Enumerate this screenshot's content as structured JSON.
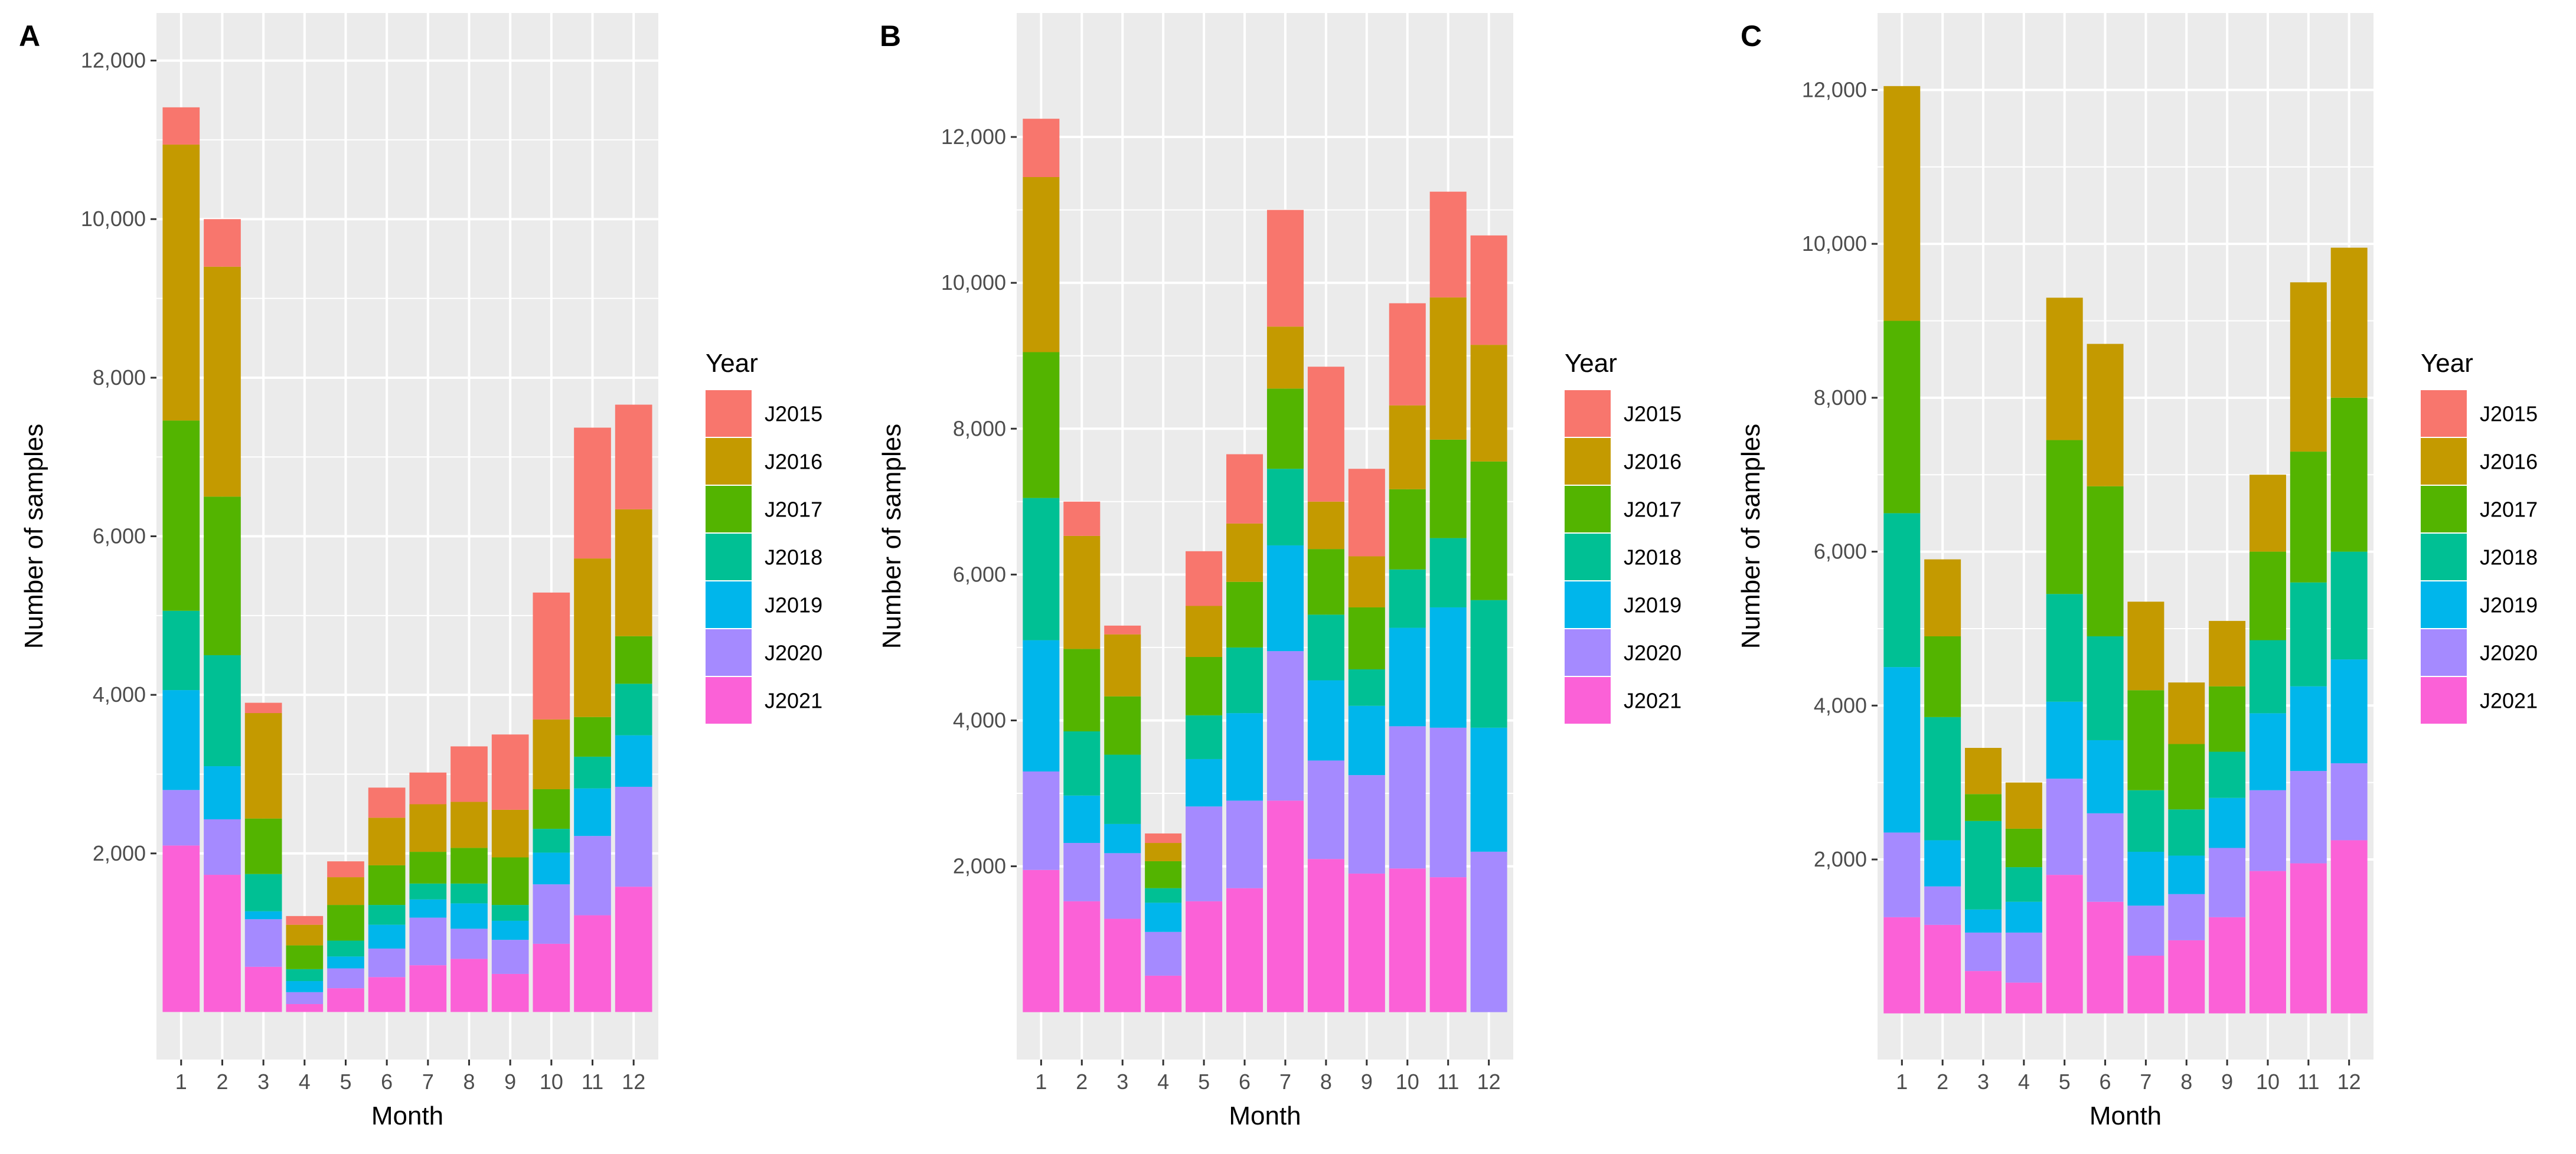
{
  "colors": {
    "J2015": "#F8766D",
    "J2016": "#C49A00",
    "J2017": "#53B400",
    "J2018": "#00C094",
    "J2019": "#00B6EB",
    "J2020": "#A58AFF",
    "J2021": "#FB61D7",
    "panel_bg": "#EBEBEB",
    "grid": "#FFFFFF"
  },
  "chart_data": [
    {
      "type": "bar",
      "stacked": true,
      "panel_label": "A",
      "xlabel": "Month",
      "ylabel": "Number of samples",
      "legend_title": "Year",
      "legend_position": "right",
      "grid": true,
      "ylim": [
        -600,
        12600
      ],
      "yticks": [
        2000,
        4000,
        6000,
        8000,
        10000,
        12000
      ],
      "ytick_labels": [
        "2,000",
        "4,000",
        "6,000",
        "8,000",
        "10,000",
        "12,000"
      ],
      "categories": [
        "1",
        "2",
        "3",
        "4",
        "5",
        "6",
        "7",
        "8",
        "9",
        "10",
        "11",
        "12"
      ],
      "series": [
        {
          "name": "J2015",
          "values": [
            470,
            600,
            130,
            110,
            200,
            380,
            400,
            700,
            950,
            1600,
            1650,
            1320
          ]
        },
        {
          "name": "J2016",
          "values": [
            3480,
            2900,
            1330,
            260,
            350,
            600,
            600,
            580,
            600,
            880,
            2000,
            1600
          ]
        },
        {
          "name": "J2017",
          "values": [
            2400,
            2000,
            700,
            300,
            450,
            500,
            400,
            450,
            600,
            500,
            500,
            600
          ]
        },
        {
          "name": "J2018",
          "values": [
            1000,
            1400,
            470,
            150,
            200,
            250,
            200,
            250,
            200,
            300,
            400,
            650
          ]
        },
        {
          "name": "J2019",
          "values": [
            1260,
            670,
            100,
            140,
            150,
            300,
            230,
            320,
            240,
            400,
            600,
            650
          ]
        },
        {
          "name": "J2020",
          "values": [
            700,
            700,
            600,
            150,
            250,
            360,
            600,
            380,
            430,
            750,
            1000,
            1260
          ]
        },
        {
          "name": "J2021",
          "values": [
            2100,
            1730,
            570,
            100,
            300,
            440,
            590,
            670,
            480,
            860,
            1220,
            1580
          ]
        }
      ]
    },
    {
      "type": "bar",
      "stacked": true,
      "panel_label": "B",
      "xlabel": "Month",
      "ylabel": "Number of samples",
      "legend_title": "Year",
      "legend_position": "right",
      "grid": true,
      "ylim": [
        -650,
        13700
      ],
      "yticks": [
        2000,
        4000,
        6000,
        8000,
        10000,
        12000
      ],
      "ytick_labels": [
        "2,000",
        "4,000",
        "6,000",
        "8,000",
        "10,000",
        "12,000"
      ],
      "categories": [
        "1",
        "2",
        "3",
        "4",
        "5",
        "6",
        "7",
        "8",
        "9",
        "10",
        "11",
        "12"
      ],
      "series": [
        {
          "name": "J2015",
          "values": [
            800,
            470,
            120,
            130,
            750,
            950,
            1600,
            1850,
            1200,
            1400,
            1450,
            1500
          ]
        },
        {
          "name": "J2016",
          "values": [
            2400,
            1550,
            850,
            250,
            700,
            800,
            850,
            650,
            700,
            1150,
            1950,
            1600
          ]
        },
        {
          "name": "J2017",
          "values": [
            2000,
            1130,
            800,
            370,
            800,
            900,
            1100,
            900,
            850,
            1100,
            1350,
            1900
          ]
        },
        {
          "name": "J2018",
          "values": [
            1950,
            880,
            950,
            200,
            600,
            900,
            1050,
            900,
            500,
            800,
            950,
            1750
          ]
        },
        {
          "name": "J2019",
          "values": [
            1800,
            650,
            400,
            400,
            650,
            1200,
            1450,
            1100,
            950,
            1350,
            1650,
            1700
          ]
        },
        {
          "name": "J2020",
          "values": [
            1350,
            800,
            900,
            600,
            1300,
            1200,
            2050,
            1350,
            1350,
            1950,
            2050,
            2200
          ]
        },
        {
          "name": "J2021",
          "values": [
            1950,
            1520,
            1280,
            500,
            1520,
            1700,
            2900,
            2100,
            1900,
            1970,
            1850,
            0
          ]
        }
      ]
    },
    {
      "type": "bar",
      "stacked": true,
      "panel_label": "C",
      "xlabel": "Month",
      "ylabel": "Number of samples",
      "legend_title": "Year",
      "legend_position": "right",
      "grid": true,
      "ylim": [
        -600,
        13000
      ],
      "yticks": [
        2000,
        4000,
        6000,
        8000,
        10000,
        12000
      ],
      "ytick_labels": [
        "2,000",
        "4,000",
        "6,000",
        "8,000",
        "10,000",
        "12,000"
      ],
      "categories": [
        "1",
        "2",
        "3",
        "4",
        "5",
        "6",
        "7",
        "8",
        "9",
        "10",
        "11",
        "12"
      ],
      "series": [
        {
          "name": "J2015",
          "values": [
            0,
            0,
            0,
            0,
            0,
            0,
            0,
            0,
            0,
            0,
            0,
            0
          ]
        },
        {
          "name": "J2016",
          "values": [
            3050,
            1000,
            600,
            600,
            1850,
            1850,
            1150,
            800,
            850,
            1000,
            2200,
            1950
          ]
        },
        {
          "name": "J2017",
          "values": [
            2500,
            1050,
            350,
            500,
            2000,
            1950,
            1300,
            850,
            850,
            1150,
            1700,
            2000
          ]
        },
        {
          "name": "J2018",
          "values": [
            2000,
            1600,
            1150,
            450,
            1400,
            1350,
            800,
            600,
            600,
            950,
            1350,
            1400
          ]
        },
        {
          "name": "J2019",
          "values": [
            2150,
            600,
            300,
            400,
            1000,
            950,
            700,
            500,
            650,
            1000,
            1100,
            1350
          ]
        },
        {
          "name": "J2020",
          "values": [
            1100,
            500,
            500,
            650,
            1250,
            1150,
            650,
            600,
            900,
            1050,
            1200,
            1000
          ]
        },
        {
          "name": "J2021",
          "values": [
            1250,
            1150,
            550,
            400,
            1800,
            1450,
            750,
            950,
            1250,
            1850,
            1950,
            2250
          ]
        }
      ]
    }
  ]
}
